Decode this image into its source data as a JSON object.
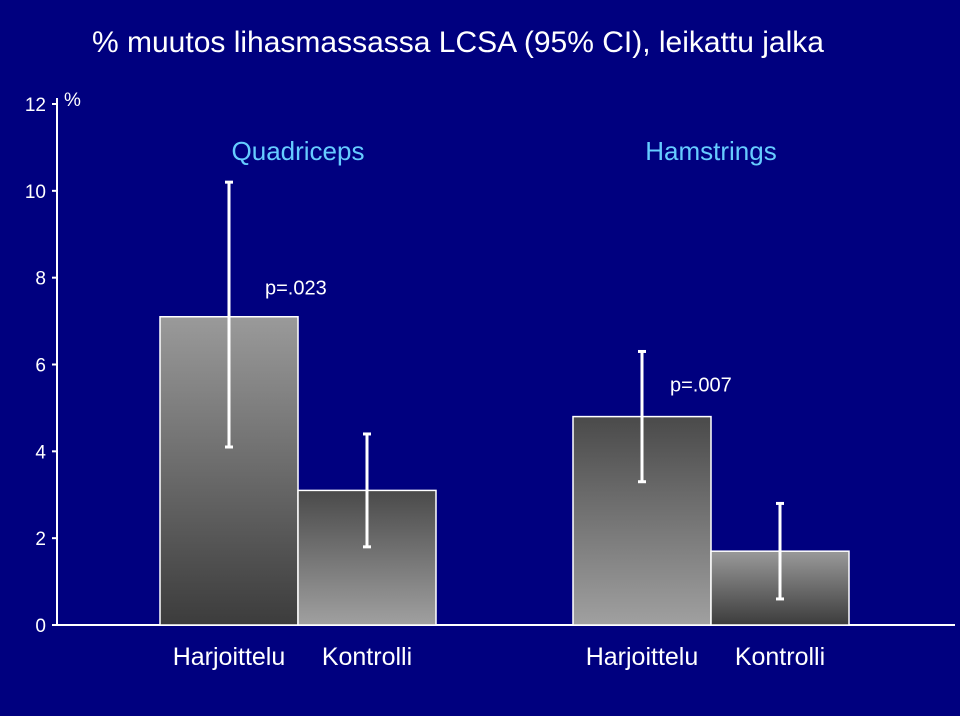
{
  "chart_data": {
    "type": "bar",
    "title": "% muutos lihasmassassa LCSA (95% CI), leikattu jalka",
    "ylabel": "%",
    "ylim": [
      0,
      12
    ],
    "yticks": [
      0,
      2,
      4,
      6,
      8,
      10,
      12
    ],
    "groups": [
      {
        "name": "Quadriceps",
        "p_value": "p=.023",
        "bars": [
          {
            "label": "Harjoittelu",
            "value": 7.1,
            "ci": [
              4.1,
              10.2
            ],
            "style": "dark"
          },
          {
            "label": "Kontrolli",
            "value": 3.1,
            "ci": [
              1.8,
              4.4
            ],
            "style": "light"
          }
        ]
      },
      {
        "name": "Hamstrings",
        "p_value": "p=.007",
        "bars": [
          {
            "label": "Harjoittelu",
            "value": 4.8,
            "ci": [
              3.3,
              6.3
            ],
            "style": "light"
          },
          {
            "label": "Kontrolli",
            "value": 1.7,
            "ci": [
              0.6,
              2.8
            ],
            "style": "dark"
          }
        ]
      }
    ],
    "colors": {
      "background": "#00007f",
      "axis": "#ffffff",
      "group_label": "#66ccff",
      "bar_dark_top": "#9a9a9a",
      "bar_dark_bottom": "#3c3c3c",
      "bar_light_top": "#4a4a4a",
      "bar_light_bottom": "#a0a0a0",
      "bar_edge": "#ffffff",
      "error_bar": "#ffffff"
    },
    "grid": false
  }
}
